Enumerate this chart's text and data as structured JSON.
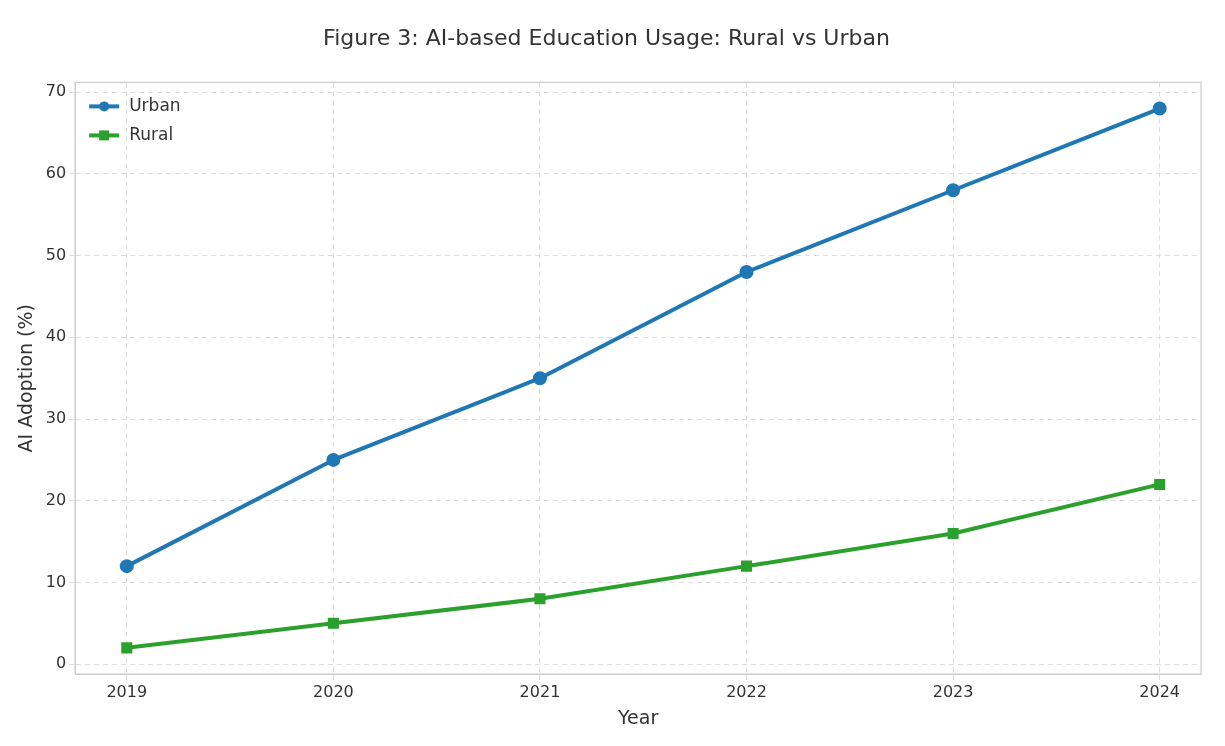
{
  "chart_data": {
    "type": "line",
    "title": "Figure 3: AI-based Education Usage: Rural vs Urban",
    "xlabel": "Year",
    "ylabel": "AI Adoption (%)",
    "x": [
      2019,
      2020,
      2021,
      2022,
      2023,
      2024
    ],
    "xlim": [
      2018.75,
      2024.2
    ],
    "xticks": [
      2019,
      2020,
      2021,
      2022,
      2023,
      2024
    ],
    "ylim": [
      -1.2,
      71.2
    ],
    "yticks": [
      0,
      10,
      20,
      30,
      40,
      50,
      60,
      70
    ],
    "series": [
      {
        "name": "Urban",
        "color": "#1f77b4",
        "marker": "circle",
        "values": [
          12,
          25,
          35,
          48,
          58,
          68
        ]
      },
      {
        "name": "Rural",
        "color": "#2ca02c",
        "marker": "square",
        "values": [
          2,
          5,
          8,
          12,
          16,
          22
        ]
      }
    ],
    "grid": true,
    "legend": "top left",
    "line_style": "solid"
  }
}
